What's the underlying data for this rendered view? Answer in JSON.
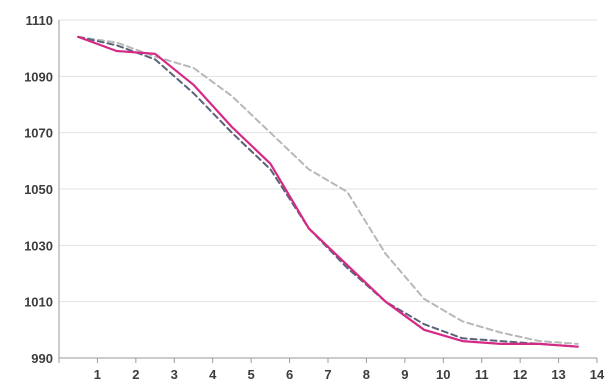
{
  "chart_data": {
    "type": "line",
    "title": "",
    "xlabel": "",
    "ylabel": "",
    "grid": true,
    "legend": "none",
    "ylim": [
      990,
      1110
    ],
    "yticks": [
      990,
      1010,
      1030,
      1050,
      1070,
      1090,
      1110
    ],
    "x_tick_labels": [
      "1",
      "2",
      "3",
      "4",
      "5",
      "6",
      "7",
      "8",
      "9",
      "10",
      "11",
      "12",
      "13",
      "14"
    ],
    "x_categories": 14,
    "series": [
      {
        "color": "#b8b8b8",
        "style": "dashed",
        "values": [
          1104,
          1102,
          1097,
          1093,
          1083,
          1070,
          1057,
          1049,
          1027,
          1011,
          1003,
          999,
          996,
          995
        ]
      },
      {
        "color": "#5a6478",
        "style": "dashed",
        "values": [
          1104,
          1101,
          1096,
          1084,
          1070,
          1057,
          1036,
          1022,
          1010,
          1002,
          997,
          996,
          995,
          994
        ]
      },
      {
        "color": "#d42a86",
        "style": "solid",
        "values": [
          1104,
          1099,
          1098,
          1087,
          1072,
          1059,
          1036,
          1023,
          1010,
          1000,
          996,
          995,
          995,
          994
        ]
      }
    ]
  }
}
